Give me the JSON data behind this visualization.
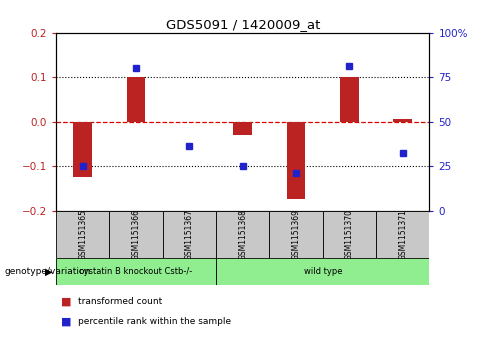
{
  "title": "GDS5091 / 1420009_at",
  "samples": [
    "GSM1151365",
    "GSM1151366",
    "GSM1151367",
    "GSM1151368",
    "GSM1151369",
    "GSM1151370",
    "GSM1151371"
  ],
  "bar_values": [
    -0.125,
    0.1,
    0.0,
    -0.03,
    -0.175,
    0.1,
    0.005
  ],
  "dot_values": [
    -0.1,
    0.12,
    -0.055,
    -0.1,
    -0.115,
    0.125,
    -0.07
  ],
  "ylim_left": [
    -0.2,
    0.2
  ],
  "ylim_right": [
    0,
    100
  ],
  "yticks_left": [
    -0.2,
    -0.1,
    0.0,
    0.1,
    0.2
  ],
  "yticks_right": [
    0,
    25,
    50,
    75,
    100
  ],
  "bar_color": "#BB2222",
  "dot_color": "#2222CC",
  "hline_color": "#DD0000",
  "groups": [
    {
      "label": "cystatin B knockout Cstb-/-",
      "start": 0,
      "end": 3,
      "color": "#90EE90"
    },
    {
      "label": "wild type",
      "start": 3,
      "end": 7,
      "color": "#90EE90"
    }
  ],
  "sample_cell_color": "#C8C8C8",
  "legend_bar_label": "transformed count",
  "legend_dot_label": "percentile rank within the sample",
  "genotype_label": "genotype/variation",
  "background_color": "#ffffff",
  "bar_width": 0.35
}
